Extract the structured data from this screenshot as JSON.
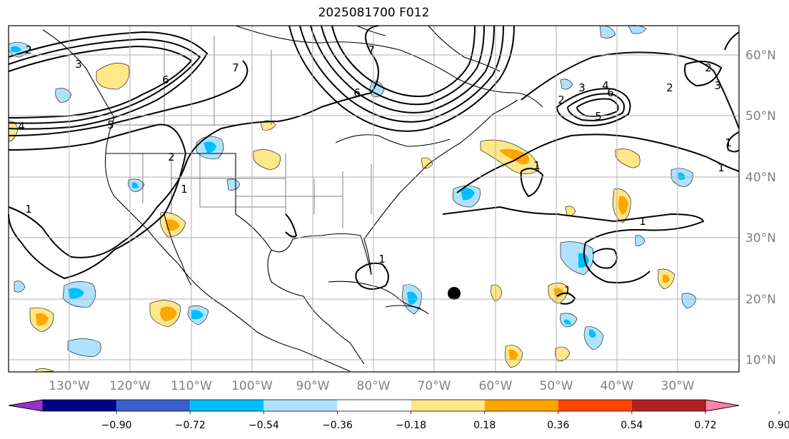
{
  "title": "2025081700 F012",
  "latitudes": [
    "60°N",
    "50°N",
    "40°N",
    "30°N",
    "20°N",
    "10°N"
  ],
  "longitudes": [
    "130°W",
    "120°W",
    "110°W",
    "100°W",
    "90°W",
    "80°W",
    "70°W",
    "60°W",
    "50°W",
    "40°W",
    "30°W"
  ],
  "colorbar": {
    "labels": [
      "−0.90",
      "−0.72",
      "−0.54",
      "−0.36",
      "−0.18",
      "0.18",
      "0.36",
      "0.54",
      "0.72",
      "0.90"
    ],
    "colors": [
      "#9932cc",
      "#00008b",
      "#3a5fcd",
      "#00bfff",
      "#b0e2ff",
      "#ffffff",
      "#ffe78a",
      "#ffa500",
      "#ff4500",
      "#b22222",
      "#ff82ab"
    ]
  },
  "contour_labels": [
    "2",
    "3",
    "4",
    "5",
    "6",
    "7",
    "1",
    "2",
    "6",
    "7",
    "1",
    "6",
    "5",
    "4",
    "3",
    "2",
    "1",
    "2",
    "3",
    "1",
    "1",
    "1",
    "1",
    "1",
    "2"
  ],
  "colors": {
    "land_line": "#000000",
    "grid": "#b0b0b0",
    "storm_marker": "#000000"
  }
}
